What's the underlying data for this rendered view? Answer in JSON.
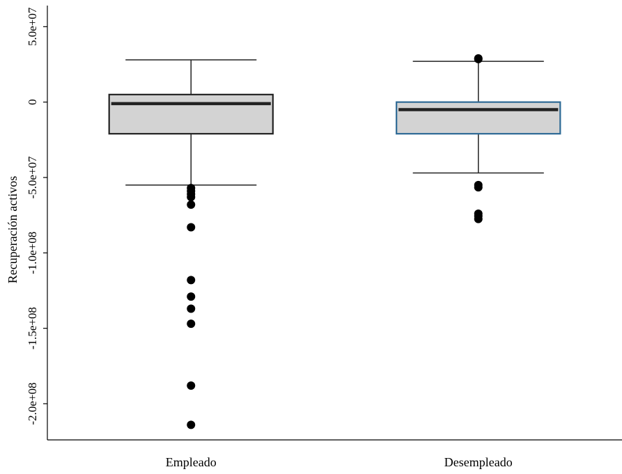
{
  "chart_data": {
    "type": "boxplot",
    "title": "",
    "xlabel": "",
    "ylabel": "Recuperación activos",
    "ylim": [
      -224000000,
      64000000
    ],
    "yticks": [
      {
        "value": 50000000,
        "label": "5.0e+07"
      },
      {
        "value": 0,
        "label": "0"
      },
      {
        "value": -50000000,
        "label": "-5.0e+07"
      },
      {
        "value": -100000000,
        "label": "-1.0e+08"
      },
      {
        "value": -150000000,
        "label": "-1.5e+08"
      },
      {
        "value": -200000000,
        "label": "-2.0e+08"
      }
    ],
    "categories": [
      "Empleado",
      "Desempleado"
    ],
    "groups": [
      {
        "label": "Empleado",
        "whisker_low": -55000000,
        "q1": -21000000,
        "median": -1000000,
        "q3": 5000000,
        "whisker_high": 28000000,
        "box_edge_color": "#222222",
        "outliers": [
          -57000000,
          -59000000,
          -61000000,
          -63000000,
          -68000000,
          -83000000,
          -118000000,
          -129000000,
          -137000000,
          -147000000,
          -188000000,
          -214000000
        ]
      },
      {
        "label": "Desempleado",
        "whisker_low": -47000000,
        "q1": -21000000,
        "median": -5000000,
        "q3": 0,
        "whisker_high": 27000000,
        "box_edge_color": "#2e6a96",
        "outliers": [
          29000000,
          28500000,
          -55000000,
          -56500000,
          -74000000,
          -75500000,
          -77500000
        ]
      }
    ],
    "box_fill": "#d3d3d3",
    "median_color": "#222222",
    "grid": false,
    "legend": "none"
  }
}
